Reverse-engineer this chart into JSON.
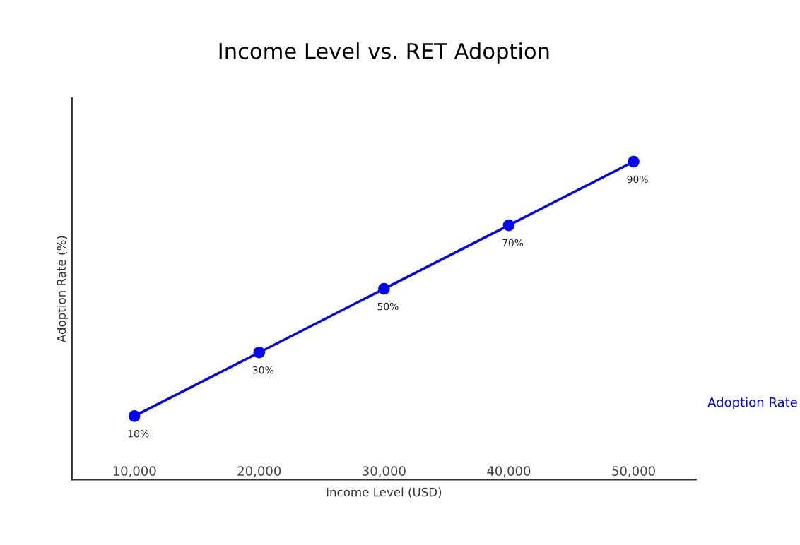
{
  "chart_data": {
    "type": "line",
    "title": "Income Level vs. RET Adoption",
    "xlabel": "Income Level (USD)",
    "ylabel": "Adoption Rate (%)",
    "categories": [
      "10,000",
      "20,000",
      "30,000",
      "40,000",
      "50,000"
    ],
    "series": [
      {
        "name": "Adoption Rate",
        "color": "#0000ff",
        "values": [
          10,
          30,
          50,
          70,
          90
        ],
        "value_labels": [
          "10%",
          "30%",
          "50%",
          "70%",
          "90%"
        ]
      }
    ],
    "marker": "circle",
    "line_style": "solid",
    "legend": "right",
    "grid": false,
    "tick_labels": "x"
  }
}
